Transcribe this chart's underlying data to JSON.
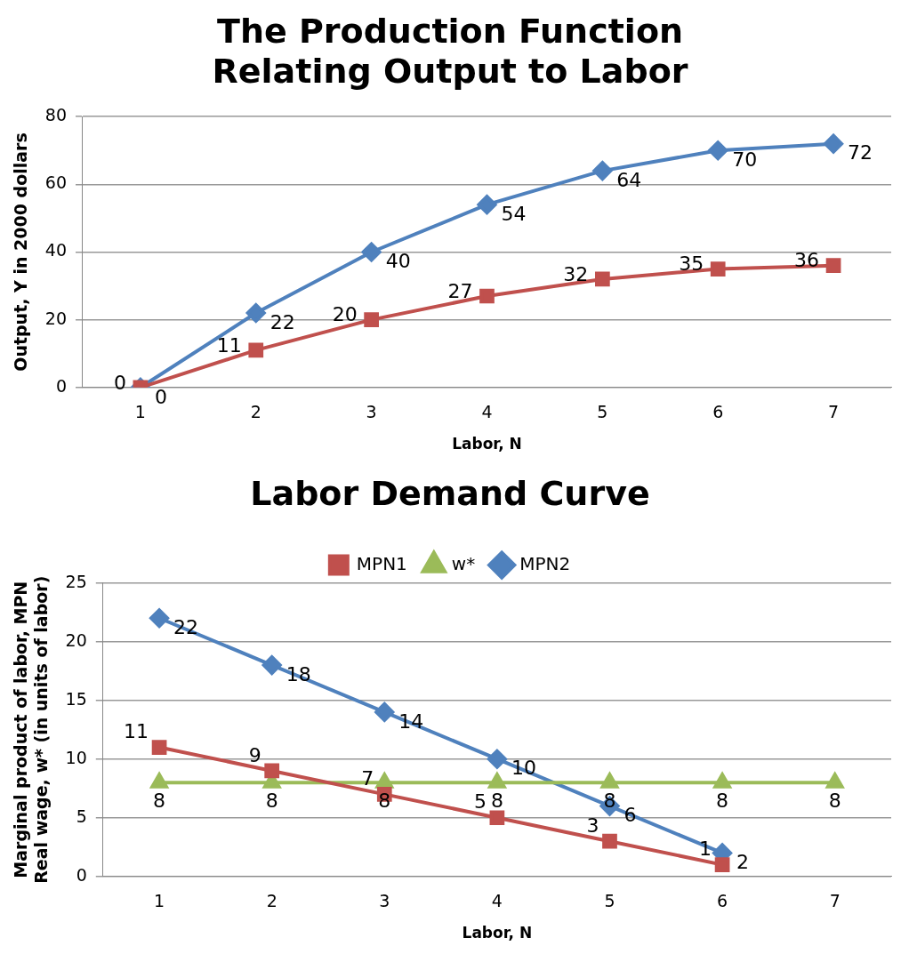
{
  "chart_data": [
    {
      "type": "line",
      "title": "The Production Function Relating Output to Labor",
      "xlabel": "Labor, N",
      "ylabel": "Output, Y in 2000 dollars",
      "categories": [
        "1",
        "2",
        "3",
        "4",
        "5",
        "6",
        "7"
      ],
      "series": [
        {
          "color": "#c0504d",
          "marker": "square",
          "values": [
            0,
            11,
            20,
            27,
            32,
            35,
            36
          ]
        },
        {
          "color": "#4f81bd",
          "marker": "diamond",
          "values": [
            0,
            22,
            40,
            54,
            64,
            70,
            72
          ]
        }
      ],
      "ylim": [
        0,
        80
      ],
      "yticks": [
        0,
        20,
        40,
        60,
        80
      ],
      "grid": "y",
      "data_labels": true,
      "legend": false
    },
    {
      "type": "line",
      "title": "Labor Demand Curve",
      "xlabel": "Labor, N",
      "ylabel": "Marginal product of labor, MPN\nReal wage, w* (in units of labor)",
      "categories": [
        "1",
        "2",
        "3",
        "4",
        "5",
        "6",
        "7"
      ],
      "series": [
        {
          "name": "MPN1",
          "color": "#c0504d",
          "marker": "square",
          "values": [
            11,
            9,
            7,
            5,
            3,
            1,
            null
          ]
        },
        {
          "name": "w*",
          "color": "#9bbb59",
          "marker": "triangle",
          "values": [
            8,
            8,
            8,
            8,
            8,
            8,
            8
          ]
        },
        {
          "name": "MPN2",
          "color": "#4f81bd",
          "marker": "diamond",
          "values": [
            22,
            18,
            14,
            10,
            6,
            2,
            null
          ]
        }
      ],
      "ylim": [
        0,
        25
      ],
      "yticks": [
        0,
        5,
        10,
        15,
        20,
        25
      ],
      "grid": "y",
      "data_labels": true,
      "legend": "top"
    }
  ]
}
